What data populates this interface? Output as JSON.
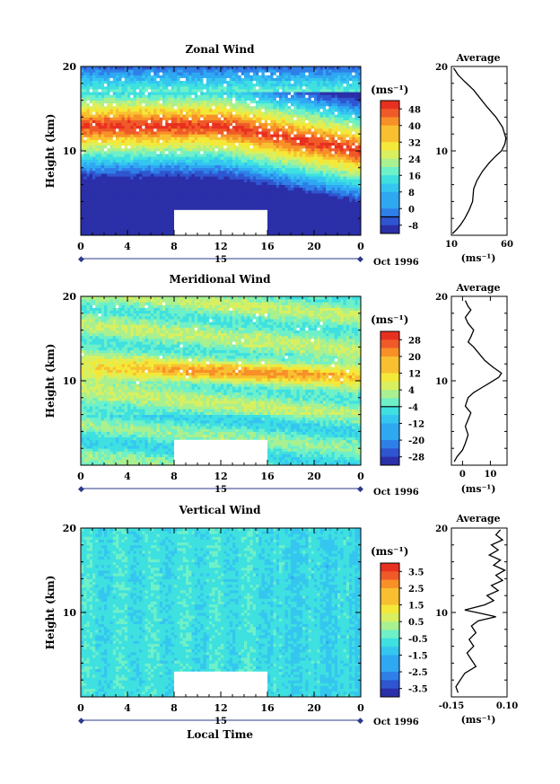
{
  "colors": {
    "palette": [
      "#2b2fa8",
      "#2f55d0",
      "#2f7fe8",
      "#2fa8f2",
      "#35c6f0",
      "#3ee0e0",
      "#6ef0c8",
      "#a8f090",
      "#d8f060",
      "#f4e838",
      "#f8c030",
      "#f89028",
      "#f05a28",
      "#e83020"
    ],
    "white": "#ffffff"
  },
  "chart_data": [
    {
      "id": "zonal",
      "type": "heatmap",
      "title": "Zonal Wind",
      "xlabel": "",
      "ylabel": "Height (km)",
      "x_ticks": [
        "0",
        "4",
        "8",
        "12",
        "16",
        "20",
        "0"
      ],
      "date_day": "15",
      "date_label": "Oct 1996",
      "y_ticks": [
        "20",
        "10"
      ],
      "ylim": [
        0,
        20
      ],
      "xlim": [
        0,
        24
      ],
      "missing_block": {
        "x0": 8,
        "x1": 16,
        "y0": 0,
        "y1": 3
      },
      "colorbar": {
        "unit": "(ms⁻¹)",
        "labels": [
          "48",
          "40",
          "32",
          "24",
          "16",
          "8",
          "0",
          "-8"
        ],
        "zero_index": 6
      },
      "profile": {
        "title": "Average",
        "xlabel": "(ms⁻¹)",
        "x_ticks": [
          "10",
          "60"
        ],
        "xlim": [
          10,
          60
        ],
        "y_ticks": [
          "20",
          "10"
        ],
        "points": [
          [
            12,
            19.8
          ],
          [
            14,
            19.4
          ],
          [
            16,
            19
          ],
          [
            22,
            18.2
          ],
          [
            30,
            17.2
          ],
          [
            36,
            16.2
          ],
          [
            42,
            15.2
          ],
          [
            50,
            14
          ],
          [
            56,
            12.8
          ],
          [
            59,
            11.5
          ],
          [
            58,
            10.8
          ],
          [
            55,
            10
          ],
          [
            50,
            9.4
          ],
          [
            44,
            8.6
          ],
          [
            38,
            7.6
          ],
          [
            33,
            6.5
          ],
          [
            30,
            5.5
          ],
          [
            29,
            4
          ],
          [
            26,
            3
          ],
          [
            22,
            2
          ],
          [
            18,
            1.2
          ],
          [
            14,
            0.6
          ],
          [
            11,
            0.2
          ]
        ]
      }
    },
    {
      "id": "meridional",
      "type": "heatmap",
      "title": "Meridional Wind",
      "xlabel": "",
      "ylabel": "Height (km)",
      "x_ticks": [
        "0",
        "4",
        "8",
        "12",
        "16",
        "20",
        "0"
      ],
      "date_day": "15",
      "date_label": "Oct 1996",
      "y_ticks": [
        "20",
        "10"
      ],
      "ylim": [
        0,
        20
      ],
      "xlim": [
        0,
        24
      ],
      "missing_block": {
        "x0": 8,
        "x1": 16,
        "y0": 0,
        "y1": 3
      },
      "colorbar": {
        "unit": "(ms⁻¹)",
        "labels": [
          "28",
          "20",
          "12",
          "4",
          "-4",
          "-12",
          "-20",
          "-28"
        ],
        "zero_index": 3.5
      },
      "profile": {
        "title": "Average",
        "xlabel": "(ms⁻¹)",
        "x_ticks": [
          "0",
          "10"
        ],
        "xlim": [
          -4,
          16
        ],
        "y_ticks": [
          "20",
          "10"
        ],
        "points": [
          [
            1,
            19.5
          ],
          [
            2,
            18.8
          ],
          [
            3,
            18.4
          ],
          [
            1,
            17.5
          ],
          [
            2,
            16.8
          ],
          [
            4,
            16
          ],
          [
            3,
            15.2
          ],
          [
            2,
            14.6
          ],
          [
            4,
            14
          ],
          [
            6,
            13.2
          ],
          [
            8,
            12.4
          ],
          [
            11,
            11.6
          ],
          [
            14,
            10.9
          ],
          [
            13,
            10.4
          ],
          [
            10,
            9.8
          ],
          [
            7,
            9.2
          ],
          [
            4,
            8.6
          ],
          [
            2,
            8
          ],
          [
            1,
            7
          ],
          [
            3,
            6.2
          ],
          [
            2,
            5.4
          ],
          [
            1,
            4.6
          ],
          [
            2,
            3.6
          ],
          [
            1,
            2.6
          ],
          [
            0,
            1.8
          ],
          [
            -2,
            1
          ],
          [
            -3,
            0.4
          ]
        ]
      }
    },
    {
      "id": "vertical",
      "type": "heatmap",
      "title": "Vertical Wind",
      "xlabel": "Local Time",
      "ylabel": "Height (km)",
      "x_ticks": [
        "0",
        "4",
        "8",
        "12",
        "16",
        "20",
        "0"
      ],
      "date_day": "15",
      "date_label": "Oct 1996",
      "y_ticks": [
        "20",
        "10"
      ],
      "ylim": [
        0,
        20
      ],
      "xlim": [
        0,
        24
      ],
      "missing_block": {
        "x0": 8,
        "x1": 16,
        "y0": 0,
        "y1": 3
      },
      "colorbar": {
        "unit": "(ms⁻¹)",
        "labels": [
          "3.5",
          "2.5",
          "1.5",
          "0.5",
          "-0.5",
          "-1.5",
          "-2.5",
          "-3.5"
        ],
        "zero_index": null
      },
      "profile": {
        "title": "Average",
        "xlabel": "(ms⁻¹)",
        "x_ticks": [
          "-0.15",
          "0.10"
        ],
        "xlim": [
          -0.15,
          0.1
        ],
        "y_ticks": [
          "20",
          "10"
        ],
        "points": [
          [
            0.07,
            19.8
          ],
          [
            0.05,
            19.2
          ],
          [
            0.08,
            18.6
          ],
          [
            0.03,
            18
          ],
          [
            0.06,
            17.4
          ],
          [
            0.02,
            16.8
          ],
          [
            0.07,
            16.2
          ],
          [
            0.04,
            15.6
          ],
          [
            0.09,
            15
          ],
          [
            0.05,
            14.4
          ],
          [
            0.08,
            13.8
          ],
          [
            0.03,
            13.2
          ],
          [
            0.06,
            12.6
          ],
          [
            0.01,
            12
          ],
          [
            0.04,
            11.4
          ],
          [
            0.0,
            10.9
          ],
          [
            -0.09,
            10.3
          ],
          [
            -0.02,
            9.9
          ],
          [
            0.05,
            9.5
          ],
          [
            -0.03,
            9
          ],
          [
            -0.06,
            8.4
          ],
          [
            -0.04,
            7.6
          ],
          [
            -0.07,
            6.8
          ],
          [
            -0.05,
            6
          ],
          [
            -0.08,
            5.2
          ],
          [
            -0.06,
            4.4
          ],
          [
            -0.04,
            3.6
          ],
          [
            -0.09,
            2.8
          ],
          [
            -0.11,
            2
          ],
          [
            -0.13,
            1.2
          ],
          [
            -0.12,
            0.5
          ]
        ]
      }
    }
  ]
}
